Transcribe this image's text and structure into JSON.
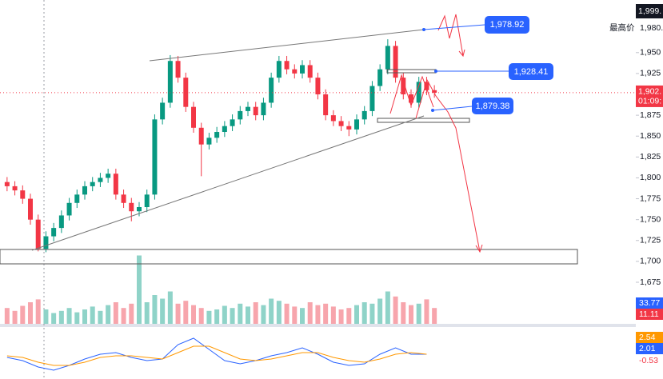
{
  "chart_data": {
    "type": "candlestick",
    "open": [
      1795,
      1790,
      1785,
      1775,
      1750,
      1715,
      1730,
      1740,
      1755,
      1770,
      1780,
      1790,
      1795,
      1800,
      1805,
      1780,
      1770,
      1760,
      1765,
      1780,
      1870,
      1890,
      1940,
      1920,
      1885,
      1860,
      1840,
      1848,
      1855,
      1862,
      1870,
      1880,
      1885,
      1875,
      1890,
      1920,
      1940,
      1930,
      1925,
      1935,
      1920,
      1900,
      1875,
      1868,
      1862,
      1858,
      1870,
      1880,
      1910,
      1930,
      1958,
      1920,
      1900,
      1890,
      1915,
      1905
    ],
    "high": [
      1801,
      1796,
      1791,
      1781,
      1756,
      1736,
      1746,
      1761,
      1776,
      1786,
      1796,
      1801,
      1806,
      1811,
      1811,
      1786,
      1776,
      1771,
      1786,
      1876,
      1896,
      1947,
      1946,
      1926,
      1891,
      1866,
      1854,
      1861,
      1868,
      1876,
      1886,
      1891,
      1891,
      1896,
      1926,
      1946,
      1946,
      1936,
      1941,
      1941,
      1926,
      1906,
      1881,
      1874,
      1868,
      1876,
      1886,
      1916,
      1936,
      1966,
      1964,
      1926,
      1906,
      1921,
      1921,
      1911
    ],
    "low": [
      1784,
      1779,
      1769,
      1744,
      1712,
      1711,
      1724,
      1734,
      1749,
      1764,
      1774,
      1784,
      1789,
      1794,
      1774,
      1764,
      1748,
      1754,
      1759,
      1774,
      1864,
      1884,
      1914,
      1879,
      1854,
      1802,
      1834,
      1842,
      1849,
      1856,
      1864,
      1874,
      1869,
      1869,
      1884,
      1914,
      1924,
      1919,
      1919,
      1914,
      1894,
      1869,
      1862,
      1856,
      1850,
      1852,
      1864,
      1874,
      1904,
      1924,
      1914,
      1894,
      1884,
      1884,
      1899,
      1896
    ],
    "close": [
      1790,
      1785,
      1775,
      1750,
      1715,
      1730,
      1740,
      1755,
      1770,
      1780,
      1790,
      1795,
      1800,
      1805,
      1780,
      1770,
      1760,
      1765,
      1780,
      1870,
      1890,
      1940,
      1920,
      1885,
      1860,
      1840,
      1848,
      1855,
      1862,
      1870,
      1880,
      1885,
      1875,
      1890,
      1920,
      1940,
      1930,
      1925,
      1935,
      1920,
      1900,
      1875,
      1868,
      1862,
      1858,
      1870,
      1880,
      1910,
      1930,
      1958,
      1920,
      1900,
      1890,
      1915,
      1905,
      1902
    ],
    "volume": [
      22,
      18,
      25,
      30,
      34,
      20,
      15,
      18,
      22,
      16,
      20,
      24,
      18,
      26,
      30,
      22,
      28,
      95,
      30,
      40,
      35,
      45,
      28,
      32,
      26,
      22,
      18,
      20,
      25,
      22,
      28,
      24,
      30,
      26,
      35,
      32,
      28,
      24,
      22,
      30,
      26,
      28,
      24,
      20,
      22,
      26,
      30,
      28,
      35,
      45,
      38,
      30,
      26,
      28,
      34,
      22
    ],
    "vlim": [
      0,
      100
    ],
    "macd": [
      0,
      -2,
      -6,
      -8,
      -5,
      -1,
      2,
      3,
      0,
      -2,
      -1,
      8,
      12,
      5,
      -2,
      -4,
      -2,
      1,
      3,
      6,
      2,
      -3,
      -5,
      -4,
      2,
      6,
      2,
      2
    ],
    "signal": [
      1,
      0,
      -3,
      -5,
      -5,
      -3,
      0,
      1,
      1,
      0,
      -1,
      3,
      7,
      7,
      3,
      -1,
      -2,
      -1,
      1,
      3,
      3,
      0,
      -2,
      -3,
      -1,
      2,
      3,
      2
    ],
    "mlim": [
      -15,
      15
    ],
    "ylim": [
      1630,
      2013
    ],
    "yticks": [
      {
        "value": 1675,
        "label": "1,675"
      },
      {
        "value": 1700,
        "label": "1,700"
      },
      {
        "value": 1725,
        "label": "1,725"
      },
      {
        "value": 1750,
        "label": "1,750"
      },
      {
        "value": 1775,
        "label": "1,775"
      },
      {
        "value": 1800,
        "label": "1,800"
      },
      {
        "value": 1825,
        "label": "1,825"
      },
      {
        "value": 1850,
        "label": "1,850"
      },
      {
        "value": 1875,
        "label": "1,875"
      },
      {
        "value": 1925,
        "label": "1,925"
      },
      {
        "value": 1950,
        "label": "1,950"
      }
    ],
    "annotations": [
      "1,978.92",
      "1,928.41",
      "1,879.38"
    ],
    "top_price": "1,999.",
    "high_price": "1,980.",
    "high_label": "最高价",
    "last_price": {
      "value": 1902,
      "label": "1,902."
    },
    "countdown": "01:09:",
    "indicator_values": {
      "volume_ma": 33.77,
      "volume": 11.11,
      "macd_signal": 2.54,
      "macd": 2.01,
      "hist": -0.53
    }
  }
}
